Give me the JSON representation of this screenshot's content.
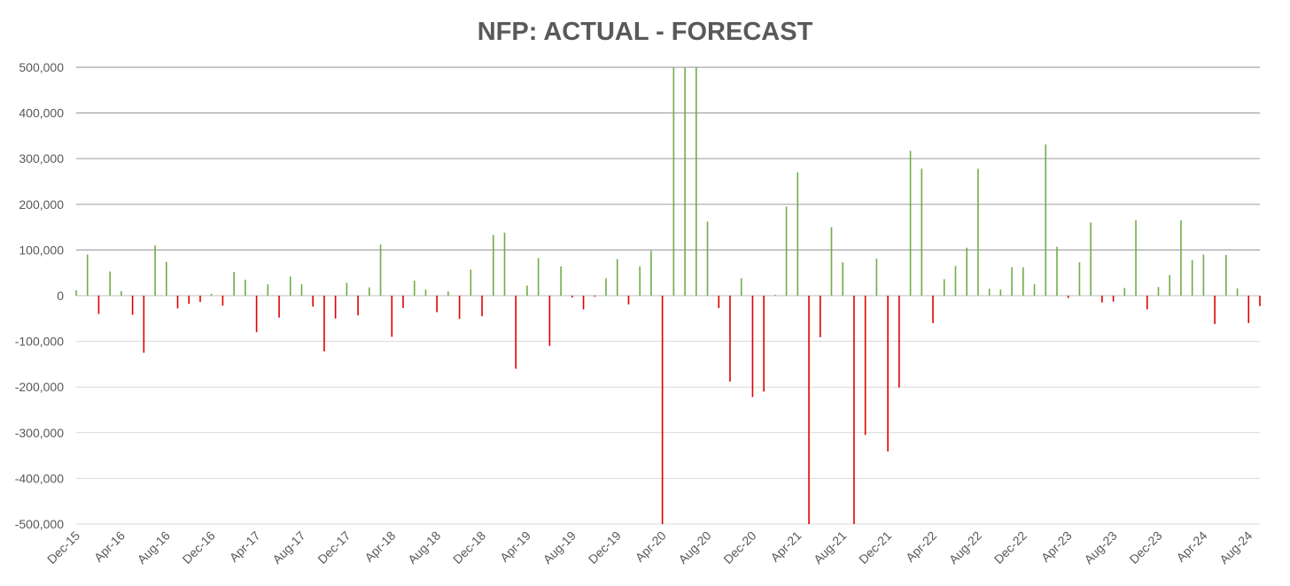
{
  "chart_data": {
    "type": "bar",
    "title": "NFP: ACTUAL - FORECAST",
    "categories": [
      "Dec-15",
      null,
      null,
      null,
      "Apr-16",
      null,
      null,
      null,
      "Aug-16",
      null,
      null,
      null,
      "Dec-16",
      null,
      null,
      null,
      "Apr-17",
      null,
      null,
      null,
      "Aug-17",
      null,
      null,
      null,
      "Dec-17",
      null,
      null,
      null,
      "Apr-18",
      null,
      null,
      null,
      "Aug-18",
      null,
      null,
      null,
      "Dec-18",
      null,
      null,
      null,
      "Apr-19",
      null,
      null,
      null,
      "Aug-19",
      null,
      null,
      null,
      "Dec-19",
      null,
      null,
      null,
      "Apr-20",
      null,
      null,
      null,
      "Aug-20",
      null,
      null,
      null,
      "Dec-20",
      null,
      null,
      null,
      "Apr-21",
      null,
      null,
      null,
      "Aug-21",
      null,
      null,
      null,
      "Dec-21",
      null,
      null,
      null,
      "Apr-22",
      null,
      null,
      null,
      "Aug-22",
      null,
      null,
      null,
      "Dec-22",
      null,
      null,
      null,
      "Apr-23",
      null,
      null,
      null,
      "Aug-23",
      null,
      null,
      null,
      "Dec-23",
      null,
      null,
      null,
      "Apr-24",
      null,
      null,
      null,
      "Aug-24",
      null
    ],
    "values": [
      12000,
      90000,
      -40000,
      53000,
      10000,
      -42000,
      -125000,
      110000,
      74000,
      -28000,
      -18000,
      -14000,
      4000,
      -22000,
      52000,
      35000,
      -80000,
      25000,
      -48000,
      42000,
      25000,
      -24000,
      -122000,
      -50000,
      28000,
      -43000,
      18000,
      112000,
      -90000,
      -27000,
      33000,
      13000,
      -36000,
      9000,
      -51000,
      57000,
      -45000,
      133000,
      138000,
      -160000,
      22000,
      82000,
      -110000,
      64000,
      -4000,
      -30000,
      -2000,
      38000,
      80000,
      -19000,
      64000,
      98000,
      -500000,
      500000,
      500000,
      500000,
      162000,
      -27000,
      -188000,
      38000,
      -222000,
      -210000,
      2000,
      195000,
      270000,
      -500000,
      -91000,
      150000,
      73000,
      -500000,
      -305000,
      81000,
      -341000,
      -201000,
      317000,
      278000,
      -60000,
      36000,
      65000,
      105000,
      278000,
      15000,
      13000,
      62000,
      62000,
      25000,
      331000,
      107000,
      -5000,
      73000,
      160000,
      -15000,
      -13000,
      17000,
      165000,
      -30000,
      19000,
      45000,
      165000,
      78000,
      90000,
      -62000,
      89000,
      16000,
      -60000,
      -23000
    ],
    "positive_color": "#70ad47",
    "negative_color": "#e00000",
    "ylim": [
      -500000,
      500000
    ],
    "yticks": [
      {
        "value": 500000,
        "label": "500,000"
      },
      {
        "value": 400000,
        "label": "400,000"
      },
      {
        "value": 300000,
        "label": "300,000"
      },
      {
        "value": 200000,
        "label": "200,000"
      },
      {
        "value": 100000,
        "label": "100,000"
      },
      0,
      {
        "value": -100000,
        "label": "-100,000"
      },
      {
        "value": -200000,
        "label": "-200,000"
      },
      {
        "value": -300000,
        "label": "-300,000"
      },
      {
        "value": -400000,
        "label": "-400,000"
      },
      {
        "value": -500000,
        "label": "-500,000"
      }
    ],
    "grid": true
  }
}
